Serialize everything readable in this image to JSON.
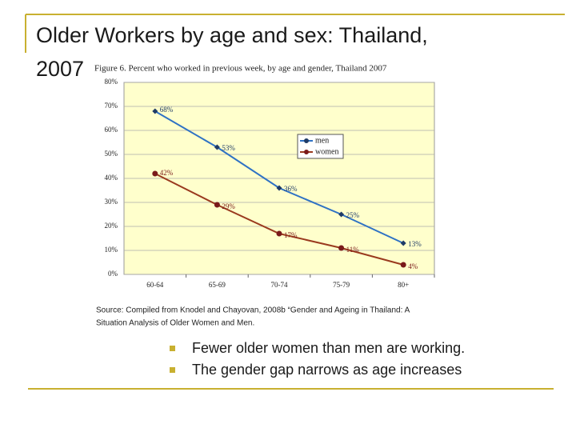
{
  "title": "Older Workers by age and sex: Thailand, 2007",
  "chart_data": {
    "type": "line",
    "title": "Figure 6. Percent who worked in previous week, by age and gender, Thailand 2007",
    "categories": [
      "60-64",
      "65-69",
      "70-74",
      "75-79",
      "80+"
    ],
    "series": [
      {
        "name": "men",
        "color": "#2f72c4",
        "marker_color": "#1f3b66",
        "values": [
          68,
          53,
          36,
          25,
          13
        ],
        "value_labels": [
          "68%",
          "53%",
          "36%",
          "25%",
          "13%"
        ]
      },
      {
        "name": "women",
        "color": "#9a3a1e",
        "marker_color": "#7a1a1a",
        "values": [
          42,
          29,
          17,
          11,
          4
        ],
        "value_labels": [
          "42%",
          "29%",
          "17%",
          "11%",
          "4%"
        ]
      }
    ],
    "ylim": [
      0,
      80
    ],
    "yticks": [
      {
        "value": 0,
        "label": "0%"
      },
      {
        "value": 10,
        "label": "10%"
      },
      {
        "value": 20,
        "label": "20%"
      },
      {
        "value": 30,
        "label": "30%"
      },
      {
        "value": 40,
        "label": "40%"
      },
      {
        "value": 50,
        "label": "50%"
      },
      {
        "value": 60,
        "label": "60%"
      },
      {
        "value": 70,
        "label": "70%"
      },
      {
        "value": 80,
        "label": "80%"
      }
    ],
    "grid": true,
    "legend": "upper right",
    "plot_background": "#ffffcc"
  },
  "source": [
    "Source: Compiled from Knodel and Chayovan, 2008b “Gender and Ageing in Thailand: A",
    "Situation Analysis of Older Women and Men."
  ],
  "bullets": [
    "Fewer older women than men are working.",
    "The gender gap narrows as age increases"
  ]
}
